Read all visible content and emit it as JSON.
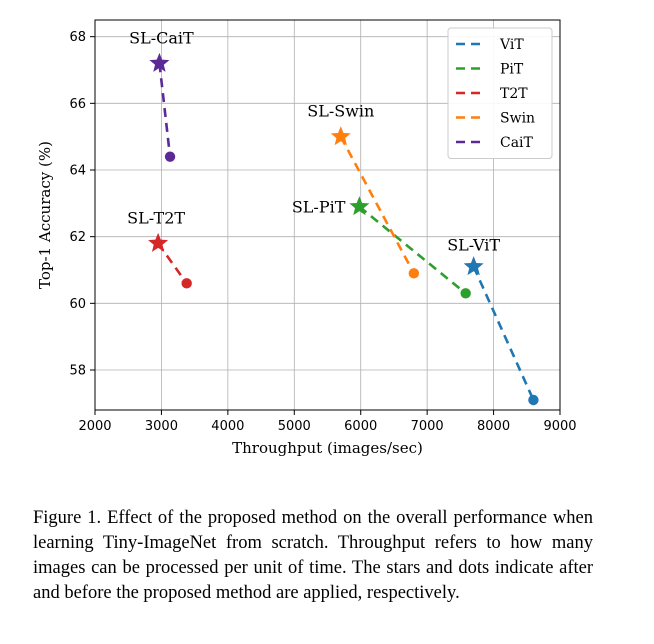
{
  "chart_data": {
    "type": "scatter",
    "xlabel": "Throughput (images/sec)",
    "ylabel": "Top-1 Accuracy (%)",
    "xlim": [
      2000,
      9000
    ],
    "ylim": [
      56.8,
      68.5
    ],
    "xticks": [
      2000,
      3000,
      4000,
      5000,
      6000,
      7000,
      8000,
      9000
    ],
    "yticks": [
      58,
      60,
      62,
      64,
      66,
      68
    ],
    "grid": true,
    "legend_position": "top-right",
    "marker_meaning": {
      "star": "after (proposed method applied)",
      "dot": "before"
    },
    "series": [
      {
        "name": "ViT",
        "color": "#1f77b4",
        "label": "SL-ViT",
        "after": {
          "x": 7700,
          "y": 61.1
        },
        "before": {
          "x": 8600,
          "y": 57.1
        }
      },
      {
        "name": "PiT",
        "color": "#2ca02c",
        "label": "SL-PiT",
        "after": {
          "x": 5980,
          "y": 62.9
        },
        "before": {
          "x": 7580,
          "y": 60.3
        }
      },
      {
        "name": "T2T",
        "color": "#d62728",
        "label": "SL-T2T",
        "after": {
          "x": 2950,
          "y": 61.8
        },
        "before": {
          "x": 3380,
          "y": 60.6
        }
      },
      {
        "name": "Swin",
        "color": "#ff7f0e",
        "label": "SL-Swin",
        "after": {
          "x": 5700,
          "y": 65.0
        },
        "before": {
          "x": 6800,
          "y": 60.9
        }
      },
      {
        "name": "CaiT",
        "color": "#5b2a96",
        "label": "SL-CaiT",
        "after": {
          "x": 2970,
          "y": 67.2
        },
        "before": {
          "x": 3130,
          "y": 64.4
        }
      }
    ]
  },
  "caption": "Figure 1. Effect of the proposed method on the overall performance when learning Tiny-ImageNet from scratch. Throughput refers to how many images can be processed per unit of time. The stars and dots indicate after and before the proposed method are applied, respectively."
}
